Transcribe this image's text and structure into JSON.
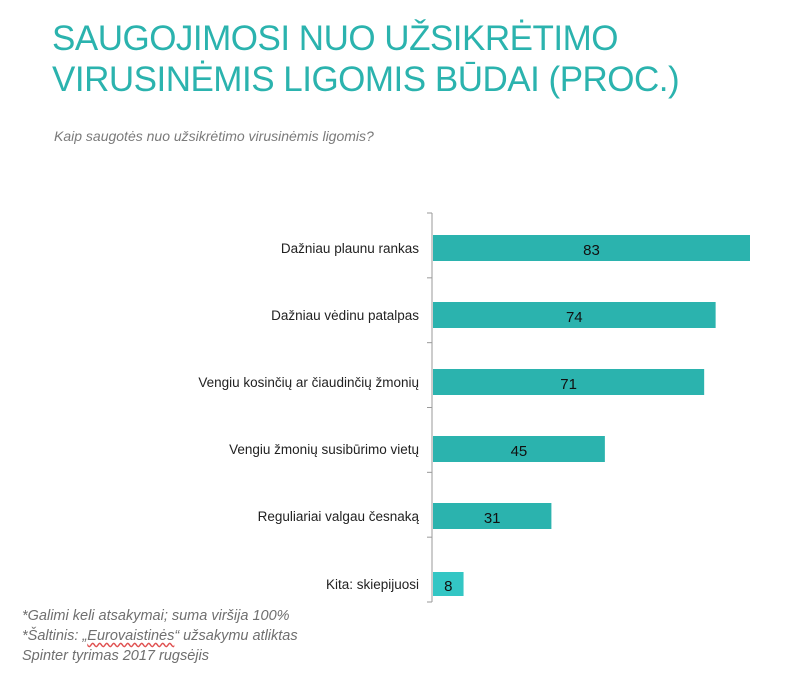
{
  "title_lines": [
    "SAUGOJIMOSI NUO UŽSIKRĖTIMO",
    "VIRUSINĖMIS LIGOMIS BŪDAI (PROC.)"
  ],
  "subtitle": "Kaip saugotės nuo užsikrėtimo virusinėmis ligomis?",
  "footnotes": {
    "line1": "*Galimi keli atsakymai; suma viršija 100%",
    "line2_prefix": "*Šaltinis: „",
    "line2_name": "Eurovaistinės",
    "line2_suffix": "“ užsakymu atliktas",
    "line3": "Spinter tyrimas 2017 rugsėjis"
  },
  "colors": {
    "bar": "#2bb3ae",
    "bar_last": "#33c6c4",
    "title": "#2bb3ae"
  },
  "chart_data": {
    "type": "bar",
    "orientation": "horizontal",
    "categories": [
      "Dažniau plaunu rankas",
      "Dažniau vėdinu patalpas",
      "Vengiu kosinčių ar čiaudinčių žmonių",
      "Vengiu žmonių susibūrimo vietų",
      "Reguliariai valgau česnaką",
      "Kita: skiepijuosi"
    ],
    "values": [
      83,
      74,
      71,
      45,
      31,
      8
    ],
    "xlim": [
      0,
      83
    ],
    "grid": false,
    "legend": "none"
  }
}
